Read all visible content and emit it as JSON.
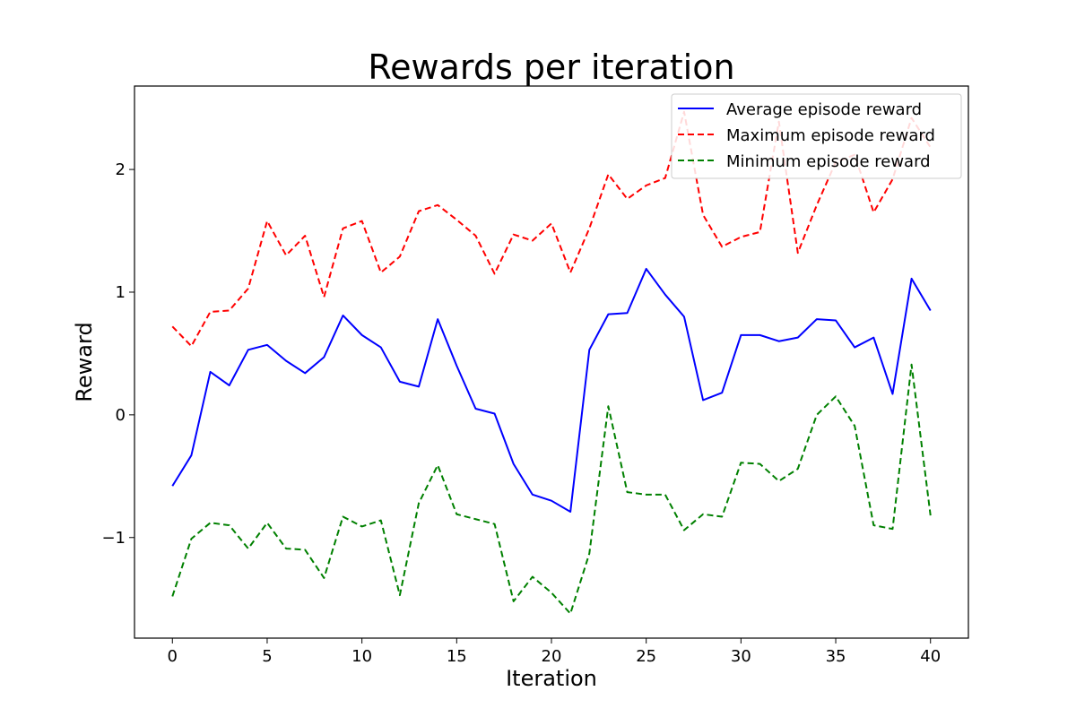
{
  "chart_data": {
    "type": "line",
    "title": "Rewards per iteration",
    "xlabel": "Iteration",
    "ylabel": "Reward",
    "xlim": [
      -2,
      42
    ],
    "ylim": [
      -1.82,
      2.68
    ],
    "x_ticks": [
      0,
      5,
      10,
      15,
      20,
      25,
      30,
      35,
      40
    ],
    "y_ticks": [
      -1,
      0,
      1,
      2
    ],
    "y_tick_labels": [
      "−1",
      "0",
      "1",
      "2"
    ],
    "grid": false,
    "legend_position": "top-right",
    "x": [
      0,
      1,
      2,
      3,
      4,
      5,
      6,
      7,
      8,
      9,
      10,
      11,
      12,
      13,
      14,
      15,
      16,
      17,
      18,
      19,
      20,
      21,
      22,
      23,
      24,
      25,
      26,
      27,
      28,
      29,
      30,
      31,
      32,
      33,
      34,
      35,
      36,
      37,
      38,
      39,
      40
    ],
    "series": [
      {
        "name": "Average episode reward",
        "color": "#0000ff",
        "style": "solid",
        "values": [
          -0.58,
          -0.33,
          0.35,
          0.24,
          0.53,
          0.57,
          0.44,
          0.34,
          0.47,
          0.81,
          0.65,
          0.55,
          0.27,
          0.23,
          0.78,
          0.4,
          0.05,
          0.01,
          -0.4,
          -0.65,
          -0.7,
          -0.79,
          0.53,
          0.82,
          0.83,
          1.19,
          0.98,
          0.8,
          0.12,
          0.18,
          0.65,
          0.65,
          0.6,
          0.63,
          0.78,
          0.77,
          0.55,
          0.63,
          0.17,
          1.11,
          0.85
        ]
      },
      {
        "name": "Maximum episode reward",
        "color": "#ff0000",
        "style": "dashed",
        "values": [
          0.72,
          0.56,
          0.84,
          0.85,
          1.03,
          1.58,
          1.3,
          1.46,
          0.96,
          1.52,
          1.58,
          1.16,
          1.29,
          1.66,
          1.71,
          1.59,
          1.46,
          1.15,
          1.47,
          1.42,
          1.56,
          1.16,
          1.52,
          1.96,
          1.76,
          1.87,
          1.93,
          2.47,
          1.63,
          1.37,
          1.45,
          1.49,
          2.39,
          1.32,
          1.71,
          2.06,
          2.12,
          1.65,
          1.92,
          2.42,
          2.18
        ]
      },
      {
        "name": "Minimum episode reward",
        "color": "#008000",
        "style": "dashed",
        "values": [
          -1.48,
          -1.01,
          -0.88,
          -0.9,
          -1.09,
          -0.88,
          -1.09,
          -1.1,
          -1.33,
          -0.83,
          -0.91,
          -0.86,
          -1.47,
          -0.72,
          -0.41,
          -0.81,
          -0.85,
          -0.89,
          -1.52,
          -1.32,
          -1.45,
          -1.62,
          -1.13,
          0.07,
          -0.63,
          -0.65,
          -0.65,
          -0.94,
          -0.81,
          -0.83,
          -0.39,
          -0.4,
          -0.54,
          -0.44,
          0.0,
          0.15,
          -0.09,
          -0.9,
          -0.93,
          0.41,
          -0.82
        ]
      }
    ]
  }
}
